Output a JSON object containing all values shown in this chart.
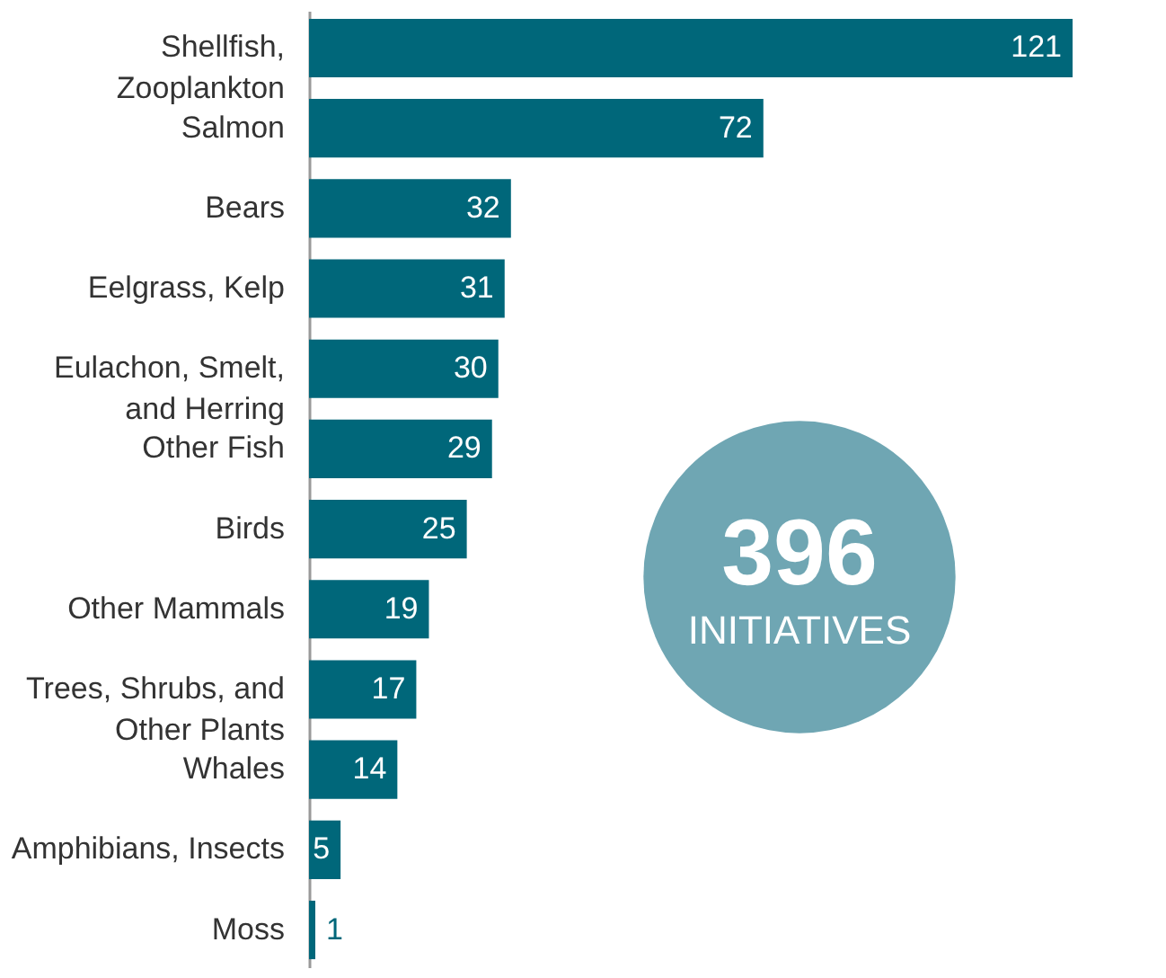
{
  "chart_data": {
    "type": "bar",
    "orientation": "horizontal",
    "categories": [
      "Shellfish, Zooplankton",
      "Salmon",
      "Bears",
      "Eelgrass, Kelp",
      "Eulachon, Smelt, and Herring",
      "Other Fish",
      "Birds",
      "Other Mammals",
      "Trees, Shrubs, and Other Plants",
      "Whales",
      "Amphibians, Insects",
      "Moss"
    ],
    "values": [
      121,
      72,
      32,
      31,
      30,
      29,
      25,
      19,
      17,
      14,
      5,
      1
    ],
    "color": "#00677a",
    "data_labels": true,
    "annotations": [
      "396",
      "INITIATIVES"
    ]
  }
}
